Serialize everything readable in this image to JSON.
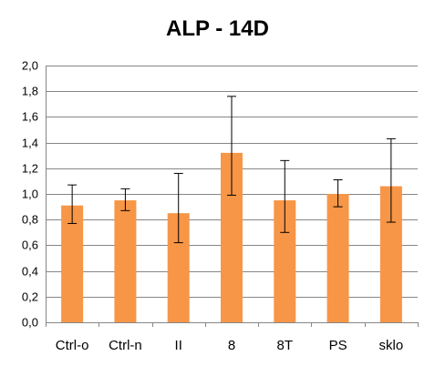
{
  "chart_data": {
    "type": "bar",
    "title": "ALP - 14D",
    "categories": [
      "Ctrl-o",
      "Ctrl-n",
      "II",
      "8",
      "8T",
      "PS",
      "sklo"
    ],
    "values": [
      0.91,
      0.95,
      0.85,
      1.32,
      0.95,
      1.0,
      1.06
    ],
    "error_low": [
      0.77,
      0.87,
      0.62,
      0.99,
      0.7,
      0.9,
      0.78
    ],
    "error_high": [
      1.07,
      1.04,
      1.16,
      1.76,
      1.26,
      1.11,
      1.43
    ],
    "yticks": [
      "0,0",
      "0,2",
      "0,4",
      "0,6",
      "0,8",
      "1,0",
      "1,2",
      "1,4",
      "1,6",
      "1,8",
      "2,0"
    ],
    "ylim": [
      0,
      2.0
    ],
    "ystep": 0.2,
    "grid": true,
    "legend": "none",
    "bar_color": "#F79646",
    "grid_color": "#868686"
  }
}
